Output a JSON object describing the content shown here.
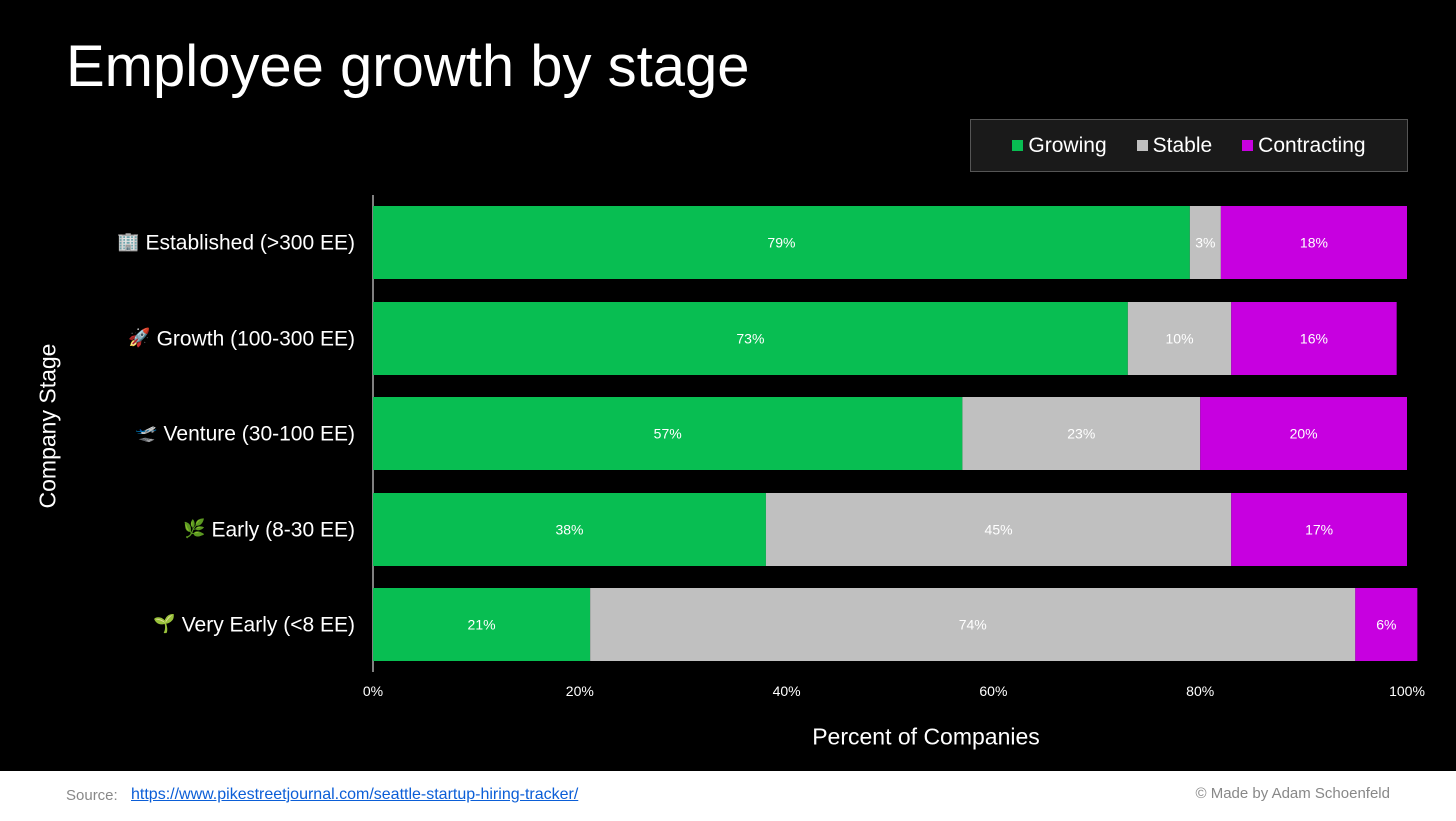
{
  "title": "Employee growth by stage",
  "legend": {
    "items": [
      {
        "label": "Growing",
        "color": "#08BE52"
      },
      {
        "label": "Stable",
        "color": "#C0C0C0"
      },
      {
        "label": "Contracting",
        "color": "#C700E0"
      }
    ]
  },
  "footer": {
    "source_label": "Source:",
    "source_link": "https://www.pikestreetjournal.com/seattle-startup-hiring-tracker/",
    "credit": "© Made by Adam Schoenfeld"
  },
  "chart_data": {
    "type": "bar",
    "orientation": "horizontal",
    "stacked": true,
    "title": "Employee growth by stage",
    "xlabel": "Percent of Companies",
    "ylabel": "Company Stage",
    "xlim": [
      0,
      100
    ],
    "xticks": [
      "0%",
      "20%",
      "40%",
      "60%",
      "80%",
      "100%"
    ],
    "legend_position": "top-right",
    "grid": false,
    "categories": [
      {
        "label": "Established (>300 EE)",
        "icon": "office-building-icon"
      },
      {
        "label": "Growth (100-300 EE)",
        "icon": "rocket-icon"
      },
      {
        "label": "Venture (30-100 EE)",
        "icon": "airplane-icon"
      },
      {
        "label": "Early (8-30 EE)",
        "icon": "herb-icon"
      },
      {
        "label": "Very Early (<8 EE)",
        "icon": "seedling-icon"
      }
    ],
    "series": [
      {
        "name": "Growing",
        "color": "#08BE52",
        "values": [
          79,
          73,
          57,
          38,
          21
        ],
        "labels": [
          "79%",
          "73%",
          "57%",
          "38%",
          "21%"
        ]
      },
      {
        "name": "Stable",
        "color": "#C0C0C0",
        "values": [
          3,
          10,
          23,
          45,
          74
        ],
        "labels": [
          "3%",
          "10%",
          "23%",
          "45%",
          "74%"
        ]
      },
      {
        "name": "Contracting",
        "color": "#C700E0",
        "values": [
          18,
          16,
          20,
          17,
          6
        ],
        "labels": [
          "18%",
          "16%",
          "20%",
          "17%",
          "6%"
        ]
      }
    ]
  }
}
